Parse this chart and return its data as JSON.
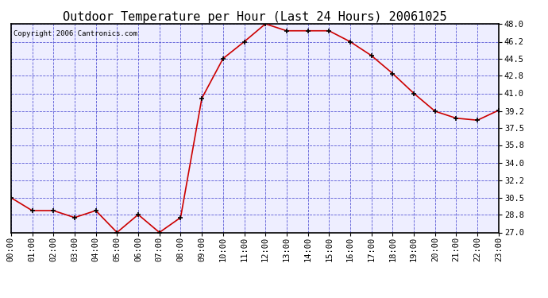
{
  "title": "Outdoor Temperature per Hour (Last 24 Hours) 20061025",
  "copyright_text": "Copyright 2006 Cantronics.com",
  "hours": [
    0,
    1,
    2,
    3,
    4,
    5,
    6,
    7,
    8,
    9,
    10,
    11,
    12,
    13,
    14,
    15,
    16,
    17,
    18,
    19,
    20,
    21,
    22,
    23
  ],
  "temps": [
    30.5,
    29.2,
    29.2,
    28.5,
    29.2,
    27.0,
    28.8,
    27.0,
    28.5,
    40.5,
    44.5,
    46.2,
    48.0,
    47.3,
    47.3,
    47.3,
    46.2,
    44.8,
    43.0,
    41.0,
    39.2,
    38.5,
    38.3,
    39.3
  ],
  "x_labels": [
    "00:00",
    "01:00",
    "02:00",
    "03:00",
    "04:00",
    "05:00",
    "06:00",
    "07:00",
    "08:00",
    "09:00",
    "10:00",
    "11:00",
    "12:00",
    "13:00",
    "14:00",
    "15:00",
    "16:00",
    "17:00",
    "18:00",
    "19:00",
    "20:00",
    "21:00",
    "22:00",
    "23:00"
  ],
  "y_ticks": [
    27.0,
    28.8,
    30.5,
    32.2,
    34.0,
    35.8,
    37.5,
    39.2,
    41.0,
    42.8,
    44.5,
    46.2,
    48.0
  ],
  "y_labels": [
    "27.0",
    "28.8",
    "30.5",
    "32.2",
    "34.0",
    "35.8",
    "37.5",
    "39.2",
    "41.0",
    "42.8",
    "44.5",
    "46.2",
    "48.0"
  ],
  "ylim": [
    27.0,
    48.0
  ],
  "line_color": "#cc0000",
  "marker_edge_color": "#000000",
  "grid_color": "#3333cc",
  "bg_color": "#ffffff",
  "plot_bg_color": "#eeeeff",
  "title_fontsize": 11,
  "tick_fontsize": 7.5,
  "copyright_fontsize": 6.5,
  "figsize": [
    6.9,
    3.75
  ],
  "dpi": 100
}
